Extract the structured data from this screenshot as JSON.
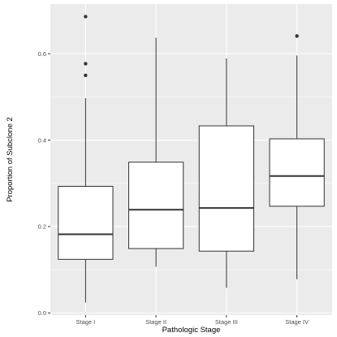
{
  "chart_data": {
    "type": "boxplot",
    "title": "",
    "xlabel": "Pathologic Stage",
    "ylabel": "Proportion of Subclone 2",
    "categories": [
      "Stage I",
      "Stage II",
      "Stage III",
      "Stage IV"
    ],
    "ylim": [
      -0.005,
      0.715
    ],
    "yticks": [
      0.0,
      0.2,
      0.4,
      0.6
    ],
    "ytick_labels": [
      "0.0",
      "0.2",
      "0.4",
      "0.6"
    ],
    "grid": true,
    "legend": "none",
    "boxes": [
      {
        "category": "Stage I",
        "lower_whisker": 0.024,
        "q1": 0.124,
        "median": 0.182,
        "q3": 0.293,
        "upper_whisker": 0.497,
        "outliers": [
          0.55,
          0.577,
          0.686
        ]
      },
      {
        "category": "Stage II",
        "lower_whisker": 0.107,
        "q1": 0.149,
        "median": 0.239,
        "q3": 0.349,
        "upper_whisker": 0.637,
        "outliers": []
      },
      {
        "category": "Stage III",
        "lower_whisker": 0.058,
        "q1": 0.143,
        "median": 0.243,
        "q3": 0.433,
        "upper_whisker": 0.589,
        "outliers": []
      },
      {
        "category": "Stage IV",
        "lower_whisker": 0.078,
        "q1": 0.247,
        "median": 0.317,
        "q3": 0.403,
        "upper_whisker": 0.596,
        "outliers": [
          0.641
        ]
      }
    ],
    "colors": {
      "panel_background": "#ebebeb",
      "grid_major": "#ffffff",
      "box_fill": "#ffffff",
      "box_stroke": "#333333",
      "point": "#333333",
      "tick": "#333333"
    }
  }
}
